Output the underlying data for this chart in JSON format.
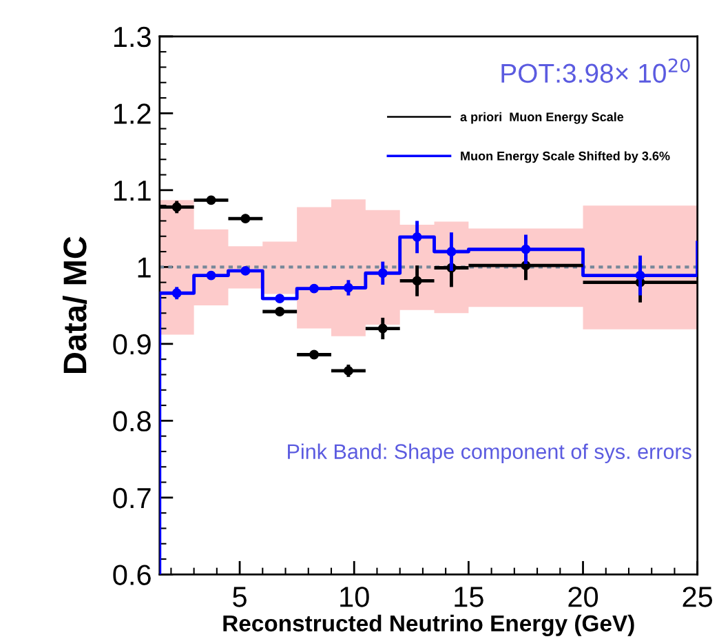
{
  "chart_data": {
    "type": "scatter",
    "xlabel": "Reconstructed Neutrino Energy (GeV)",
    "ylabel": "Data/ MC",
    "xlim": [
      1.5,
      25
    ],
    "xticks": [
      5,
      10,
      15,
      20,
      25
    ],
    "ylim": [
      0.6,
      1.3
    ],
    "yticks": [
      0.6,
      0.7,
      0.8,
      0.9,
      {
        "value": 1,
        "label": "1"
      },
      1.1,
      1.2,
      1.3
    ],
    "grid": false,
    "legend": "top right",
    "marker": "circle",
    "annotations": [
      "POT:3.98× 10$^{20}$",
      "Pink Band: Shape component of sys. errors"
    ],
    "series": [
      {
        "type": "step",
        "color": "#778899",
        "line_style": "dotted",
        "marker": "none",
        "x": [
          1.5,
          3,
          4.5,
          6,
          7.5,
          9,
          10.5,
          12,
          13.5,
          15,
          20,
          25
        ],
        "values": [
          1,
          1,
          1,
          1,
          1,
          1,
          1,
          1,
          1,
          1,
          1,
          1
        ],
        "lower": [
          0.912,
          0.95,
          0.972,
          0.965,
          0.92,
          0.91,
          0.925,
          0.944,
          0.94,
          0.948,
          0.919,
          0.919
        ],
        "upper": [
          1.087,
          1.049,
          1.027,
          1.033,
          1.078,
          1.088,
          1.074,
          1.055,
          1.059,
          1.05,
          1.08,
          1.08
        ]
      },
      {
        "type": "step",
        "color": "#0000ff",
        "marker": "none",
        "x": [
          1.5,
          1.5,
          3,
          4.5,
          6,
          7.5,
          9,
          10.5,
          12,
          13.5,
          15,
          20,
          25,
          25
        ],
        "values": [
          0.6,
          0.966,
          0.989,
          0.995,
          0.959,
          0.972,
          0.973,
          0.992,
          1.039,
          1.02,
          1.023,
          0.989,
          0.989,
          1.032
        ]
      },
      {
        "name": "a priori  Muon Energy Scale",
        "color": "#000000",
        "x": [
          2.25,
          3.75,
          5.25,
          6.75,
          8.25,
          9.75,
          11.25,
          12.75,
          14.25,
          17.5,
          22.5
        ],
        "values": [
          1.078,
          1.087,
          1.063,
          0.942,
          0.886,
          0.865,
          0.92,
          0.982,
          0.999,
          1.002,
          0.98
        ],
        "errors": [
          0.008,
          0.003,
          0.003,
          0.003,
          0.003,
          0.008,
          0.014,
          0.02,
          0.025,
          0.019,
          0.026
        ],
        "xerrors": [
          0.75,
          0.75,
          0.75,
          0.75,
          0.75,
          0.75,
          0.75,
          0.75,
          0.75,
          2.5,
          2.5
        ]
      },
      {
        "name": "Muon Energy Scale Shifted by 3.6%",
        "color": "#0000ff",
        "x": [
          2.25,
          3.75,
          5.25,
          6.75,
          8.25,
          9.75,
          11.25,
          12.75,
          14.25,
          17.5,
          22.5
        ],
        "values": [
          0.966,
          0.989,
          0.995,
          0.959,
          0.972,
          0.973,
          0.992,
          1.039,
          1.02,
          1.023,
          0.989
        ],
        "errors": [
          0.008,
          0.003,
          0.003,
          0.003,
          0.003,
          0.01,
          0.015,
          0.021,
          0.025,
          0.019,
          0.026
        ]
      }
    ]
  }
}
